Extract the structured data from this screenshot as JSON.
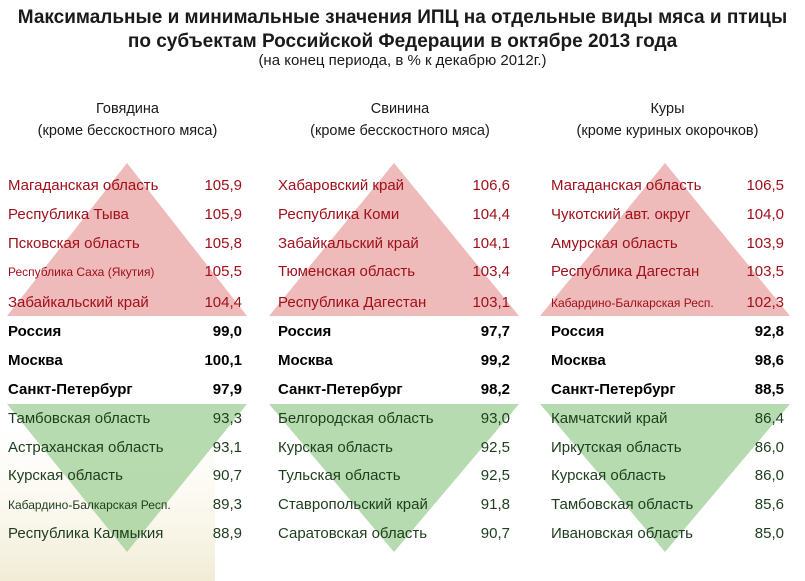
{
  "title_line1": "Максимальные и минимальные значения ИПЦ на отдельные виды мяса и птицы",
  "title_line2": "по субъектам Российской Федерации в октябре 2013 года",
  "subtitle": "(на конец периода, в % к декабрю 2012г.)",
  "colors": {
    "max_text": "#a0101a",
    "max_triangle": "#e8a3a3",
    "min_triangle": "#9fcf96",
    "ref_text": "#000000"
  },
  "chart_data": {
    "type": "table",
    "title": "Максимальные и минимальные значения ИПЦ на отдельные виды мяса и птицы по субъектам Российской Федерации в октябре 2013 года",
    "unit": "(на конец периода, в % к декабрю 2012г.)",
    "columns": [
      {
        "header1": "Говядина",
        "header2": "(кроме бесскостного мяса)",
        "max": [
          {
            "region": "Магаданская область",
            "value": "105,9"
          },
          {
            "region": "Республика Тыва",
            "value": "105,9"
          },
          {
            "region": "Псковская область",
            "value": "105,8"
          },
          {
            "region": "Республика Саха (Якутия)",
            "value": "105,5"
          },
          {
            "region": "Забайкальский край",
            "value": "104,4"
          }
        ],
        "ref": [
          {
            "region": "Россия",
            "value": "99,0"
          },
          {
            "region": "Москва",
            "value": "100,1"
          },
          {
            "region": "Санкт-Петербург",
            "value": "97,9"
          }
        ],
        "min": [
          {
            "region": "Тамбовская область",
            "value": "93,3"
          },
          {
            "region": "Астраханская область",
            "value": "93,1"
          },
          {
            "region": "Курская область",
            "value": "90,7"
          },
          {
            "region": "Кабардино-Балкарская Респ.",
            "value": "89,3"
          },
          {
            "region": "Республика Калмыкия",
            "value": "88,9"
          }
        ]
      },
      {
        "header1": "Свинина",
        "header2": "(кроме бесскостного мяса)",
        "max": [
          {
            "region": "Хабаровский край",
            "value": "106,6"
          },
          {
            "region": "Республика Коми",
            "value": "104,4"
          },
          {
            "region": "Забайкальский край",
            "value": "104,1"
          },
          {
            "region": "Тюменская область",
            "value": "103,4"
          },
          {
            "region": "Республика Дагестан",
            "value": "103,1"
          }
        ],
        "ref": [
          {
            "region": "Россия",
            "value": "97,7"
          },
          {
            "region": "Москва",
            "value": "99,2"
          },
          {
            "region": "Санкт-Петербург",
            "value": "98,2"
          }
        ],
        "min": [
          {
            "region": "Белгородская область",
            "value": "93,0"
          },
          {
            "region": "Курская область",
            "value": "92,5"
          },
          {
            "region": "Тульская область",
            "value": "92,5"
          },
          {
            "region": "Ставропольский край",
            "value": "91,8"
          },
          {
            "region": "Саратовская область",
            "value": "90,7"
          }
        ]
      },
      {
        "header1": "Куры",
        "header2": "(кроме куриных окорочков)",
        "max": [
          {
            "region": "Магаданская область",
            "value": "106,5"
          },
          {
            "region": "Чукотский авт. округ",
            "value": "104,0"
          },
          {
            "region": "Амурская область",
            "value": "103,9"
          },
          {
            "region": "Республика Дагестан",
            "value": "103,5"
          },
          {
            "region": "Кабардино-Балкарская Респ.",
            "value": "102,3"
          }
        ],
        "ref": [
          {
            "region": "Россия",
            "value": "92,8"
          },
          {
            "region": "Москва",
            "value": "98,6"
          },
          {
            "region": "Санкт-Петербург",
            "value": "88,5"
          }
        ],
        "min": [
          {
            "region": "Камчатский край",
            "value": "86,4"
          },
          {
            "region": "Иркутская область",
            "value": "86,0"
          },
          {
            "region": "Курская область",
            "value": "86,0"
          },
          {
            "region": "Тамбовская область",
            "value": "85,6"
          },
          {
            "region": "Ивановская область",
            "value": "85,0"
          }
        ]
      }
    ]
  }
}
